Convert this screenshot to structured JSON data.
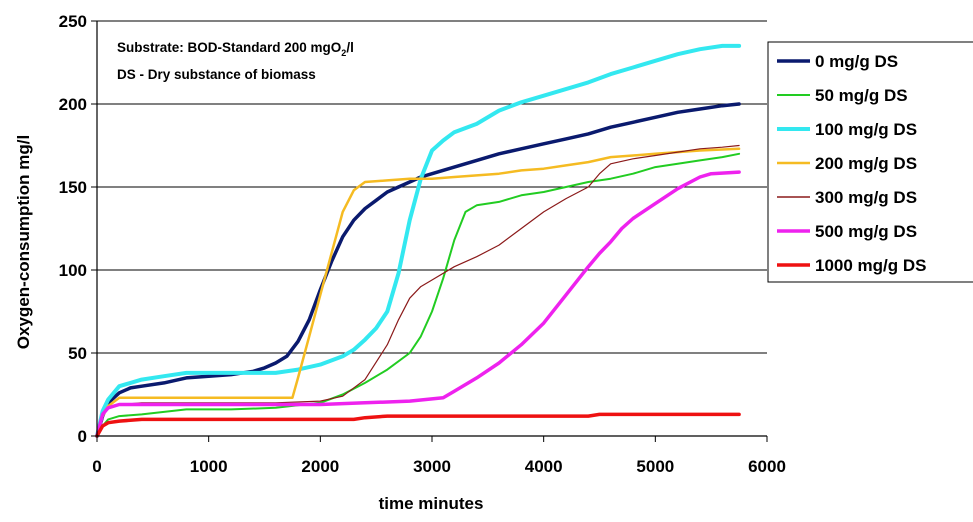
{
  "chart_data": {
    "type": "line",
    "title": "",
    "xlabel": "time  minutes",
    "ylabel": "Oxygen-consumption  mg/l",
    "xlim": [
      0,
      6000
    ],
    "ylim": [
      0,
      250
    ],
    "xticks": [
      0,
      1000,
      2000,
      3000,
      4000,
      5000,
      6000
    ],
    "yticks": [
      0,
      50,
      100,
      150,
      200,
      250
    ],
    "grid": "horizontal",
    "legend_position": "right",
    "annotation": {
      "line1_prefix": "Substrate: BOD-Standard 200 mgO",
      "line1_sub": "2",
      "line1_suffix": "/l",
      "line2": "DS - Dry substance of biomass"
    },
    "series": [
      {
        "name": "0 mg/g DS",
        "color": "#0a1a6e",
        "width": 3.5,
        "points": [
          [
            0,
            0
          ],
          [
            50,
            12
          ],
          [
            100,
            20
          ],
          [
            200,
            26
          ],
          [
            300,
            29
          ],
          [
            400,
            30
          ],
          [
            600,
            32
          ],
          [
            800,
            35
          ],
          [
            1000,
            36
          ],
          [
            1200,
            37
          ],
          [
            1400,
            39
          ],
          [
            1500,
            41
          ],
          [
            1600,
            44
          ],
          [
            1700,
            48
          ],
          [
            1800,
            57
          ],
          [
            1900,
            70
          ],
          [
            2000,
            88
          ],
          [
            2100,
            105
          ],
          [
            2200,
            120
          ],
          [
            2300,
            130
          ],
          [
            2400,
            137
          ],
          [
            2500,
            142
          ],
          [
            2600,
            147
          ],
          [
            2700,
            150
          ],
          [
            2800,
            153
          ],
          [
            2900,
            156
          ],
          [
            3000,
            158
          ],
          [
            3200,
            162
          ],
          [
            3400,
            166
          ],
          [
            3600,
            170
          ],
          [
            3800,
            173
          ],
          [
            4000,
            176
          ],
          [
            4200,
            179
          ],
          [
            4400,
            182
          ],
          [
            4600,
            186
          ],
          [
            4800,
            189
          ],
          [
            5000,
            192
          ],
          [
            5200,
            195
          ],
          [
            5400,
            197
          ],
          [
            5600,
            199
          ],
          [
            5750,
            200
          ]
        ]
      },
      {
        "name": "50 mg/g DS",
        "color": "#22cc22",
        "width": 2,
        "points": [
          [
            0,
            0
          ],
          [
            50,
            6
          ],
          [
            100,
            10
          ],
          [
            200,
            12
          ],
          [
            400,
            13
          ],
          [
            800,
            16
          ],
          [
            1200,
            16
          ],
          [
            1600,
            17
          ],
          [
            2000,
            20
          ],
          [
            2200,
            25
          ],
          [
            2400,
            32
          ],
          [
            2600,
            40
          ],
          [
            2800,
            50
          ],
          [
            2900,
            60
          ],
          [
            3000,
            75
          ],
          [
            3100,
            95
          ],
          [
            3200,
            118
          ],
          [
            3300,
            135
          ],
          [
            3400,
            139
          ],
          [
            3600,
            141
          ],
          [
            3800,
            145
          ],
          [
            4000,
            147
          ],
          [
            4200,
            150
          ],
          [
            4400,
            153
          ],
          [
            4600,
            155
          ],
          [
            4800,
            158
          ],
          [
            5000,
            162
          ],
          [
            5200,
            164
          ],
          [
            5400,
            166
          ],
          [
            5600,
            168
          ],
          [
            5750,
            170
          ]
        ]
      },
      {
        "name": "100 mg/g DS",
        "color": "#33e8f0",
        "width": 4,
        "points": [
          [
            0,
            0
          ],
          [
            50,
            15
          ],
          [
            100,
            22
          ],
          [
            200,
            30
          ],
          [
            300,
            32
          ],
          [
            400,
            34
          ],
          [
            600,
            36
          ],
          [
            800,
            38
          ],
          [
            1200,
            38
          ],
          [
            1600,
            38
          ],
          [
            1800,
            40
          ],
          [
            2000,
            43
          ],
          [
            2200,
            48
          ],
          [
            2300,
            52
          ],
          [
            2400,
            58
          ],
          [
            2500,
            65
          ],
          [
            2600,
            75
          ],
          [
            2700,
            98
          ],
          [
            2800,
            130
          ],
          [
            2900,
            155
          ],
          [
            3000,
            172
          ],
          [
            3100,
            178
          ],
          [
            3200,
            183
          ],
          [
            3400,
            188
          ],
          [
            3600,
            196
          ],
          [
            3800,
            201
          ],
          [
            4000,
            205
          ],
          [
            4200,
            209
          ],
          [
            4400,
            213
          ],
          [
            4600,
            218
          ],
          [
            4800,
            222
          ],
          [
            5000,
            226
          ],
          [
            5200,
            230
          ],
          [
            5400,
            233
          ],
          [
            5600,
            235
          ],
          [
            5750,
            235
          ]
        ]
      },
      {
        "name": "200 mg/g DS",
        "color": "#f5bb22",
        "width": 2.5,
        "points": [
          [
            0,
            0
          ],
          [
            50,
            12
          ],
          [
            100,
            18
          ],
          [
            200,
            23
          ],
          [
            400,
            23
          ],
          [
            800,
            23
          ],
          [
            1200,
            23
          ],
          [
            1600,
            23
          ],
          [
            1750,
            23
          ],
          [
            1800,
            35
          ],
          [
            1900,
            60
          ],
          [
            2000,
            85
          ],
          [
            2100,
            110
          ],
          [
            2200,
            135
          ],
          [
            2300,
            148
          ],
          [
            2400,
            153
          ],
          [
            2600,
            154
          ],
          [
            2800,
            155
          ],
          [
            3000,
            155
          ],
          [
            3200,
            156
          ],
          [
            3400,
            157
          ],
          [
            3600,
            158
          ],
          [
            3800,
            160
          ],
          [
            4000,
            161
          ],
          [
            4200,
            163
          ],
          [
            4400,
            165
          ],
          [
            4600,
            168
          ],
          [
            4800,
            169
          ],
          [
            5000,
            170
          ],
          [
            5200,
            171
          ],
          [
            5400,
            172
          ],
          [
            5750,
            173
          ]
        ]
      },
      {
        "name": "300 mg/g DS",
        "color": "#8b1a1a",
        "width": 1.2,
        "points": [
          [
            0,
            0
          ],
          [
            50,
            14
          ],
          [
            100,
            17
          ],
          [
            200,
            19
          ],
          [
            400,
            20
          ],
          [
            800,
            20
          ],
          [
            1200,
            20
          ],
          [
            1600,
            20
          ],
          [
            2000,
            21
          ],
          [
            2200,
            24
          ],
          [
            2400,
            34
          ],
          [
            2600,
            55
          ],
          [
            2700,
            70
          ],
          [
            2800,
            83
          ],
          [
            2900,
            90
          ],
          [
            3000,
            94
          ],
          [
            3200,
            102
          ],
          [
            3400,
            108
          ],
          [
            3600,
            115
          ],
          [
            3800,
            125
          ],
          [
            4000,
            135
          ],
          [
            4200,
            143
          ],
          [
            4400,
            150
          ],
          [
            4500,
            158
          ],
          [
            4600,
            164
          ],
          [
            4800,
            167
          ],
          [
            5000,
            169
          ],
          [
            5200,
            171
          ],
          [
            5400,
            173
          ],
          [
            5600,
            174
          ],
          [
            5750,
            175
          ]
        ]
      },
      {
        "name": "500 mg/g DS",
        "color": "#ee22ee",
        "width": 3.5,
        "points": [
          [
            0,
            0
          ],
          [
            50,
            13
          ],
          [
            100,
            17
          ],
          [
            200,
            19
          ],
          [
            400,
            19
          ],
          [
            800,
            19
          ],
          [
            1200,
            19
          ],
          [
            1600,
            19
          ],
          [
            2000,
            19
          ],
          [
            2400,
            20
          ],
          [
            2800,
            21
          ],
          [
            3100,
            23
          ],
          [
            3200,
            27
          ],
          [
            3400,
            35
          ],
          [
            3600,
            44
          ],
          [
            3800,
            55
          ],
          [
            4000,
            68
          ],
          [
            4200,
            85
          ],
          [
            4400,
            102
          ],
          [
            4500,
            110
          ],
          [
            4600,
            117
          ],
          [
            4700,
            125
          ],
          [
            4800,
            131
          ],
          [
            5000,
            140
          ],
          [
            5200,
            149
          ],
          [
            5400,
            156
          ],
          [
            5500,
            158
          ],
          [
            5750,
            159
          ]
        ]
      },
      {
        "name": "1000 mg/g DS",
        "color": "#ee1111",
        "width": 3.5,
        "points": [
          [
            0,
            0
          ],
          [
            50,
            6
          ],
          [
            100,
            8
          ],
          [
            200,
            9
          ],
          [
            400,
            10
          ],
          [
            800,
            10
          ],
          [
            1200,
            10
          ],
          [
            1600,
            10
          ],
          [
            2000,
            10
          ],
          [
            2300,
            10
          ],
          [
            2400,
            11
          ],
          [
            2600,
            12
          ],
          [
            3000,
            12
          ],
          [
            3500,
            12
          ],
          [
            4000,
            12
          ],
          [
            4400,
            12
          ],
          [
            4500,
            13
          ],
          [
            5000,
            13
          ],
          [
            5500,
            13
          ],
          [
            5750,
            13
          ]
        ]
      }
    ]
  }
}
